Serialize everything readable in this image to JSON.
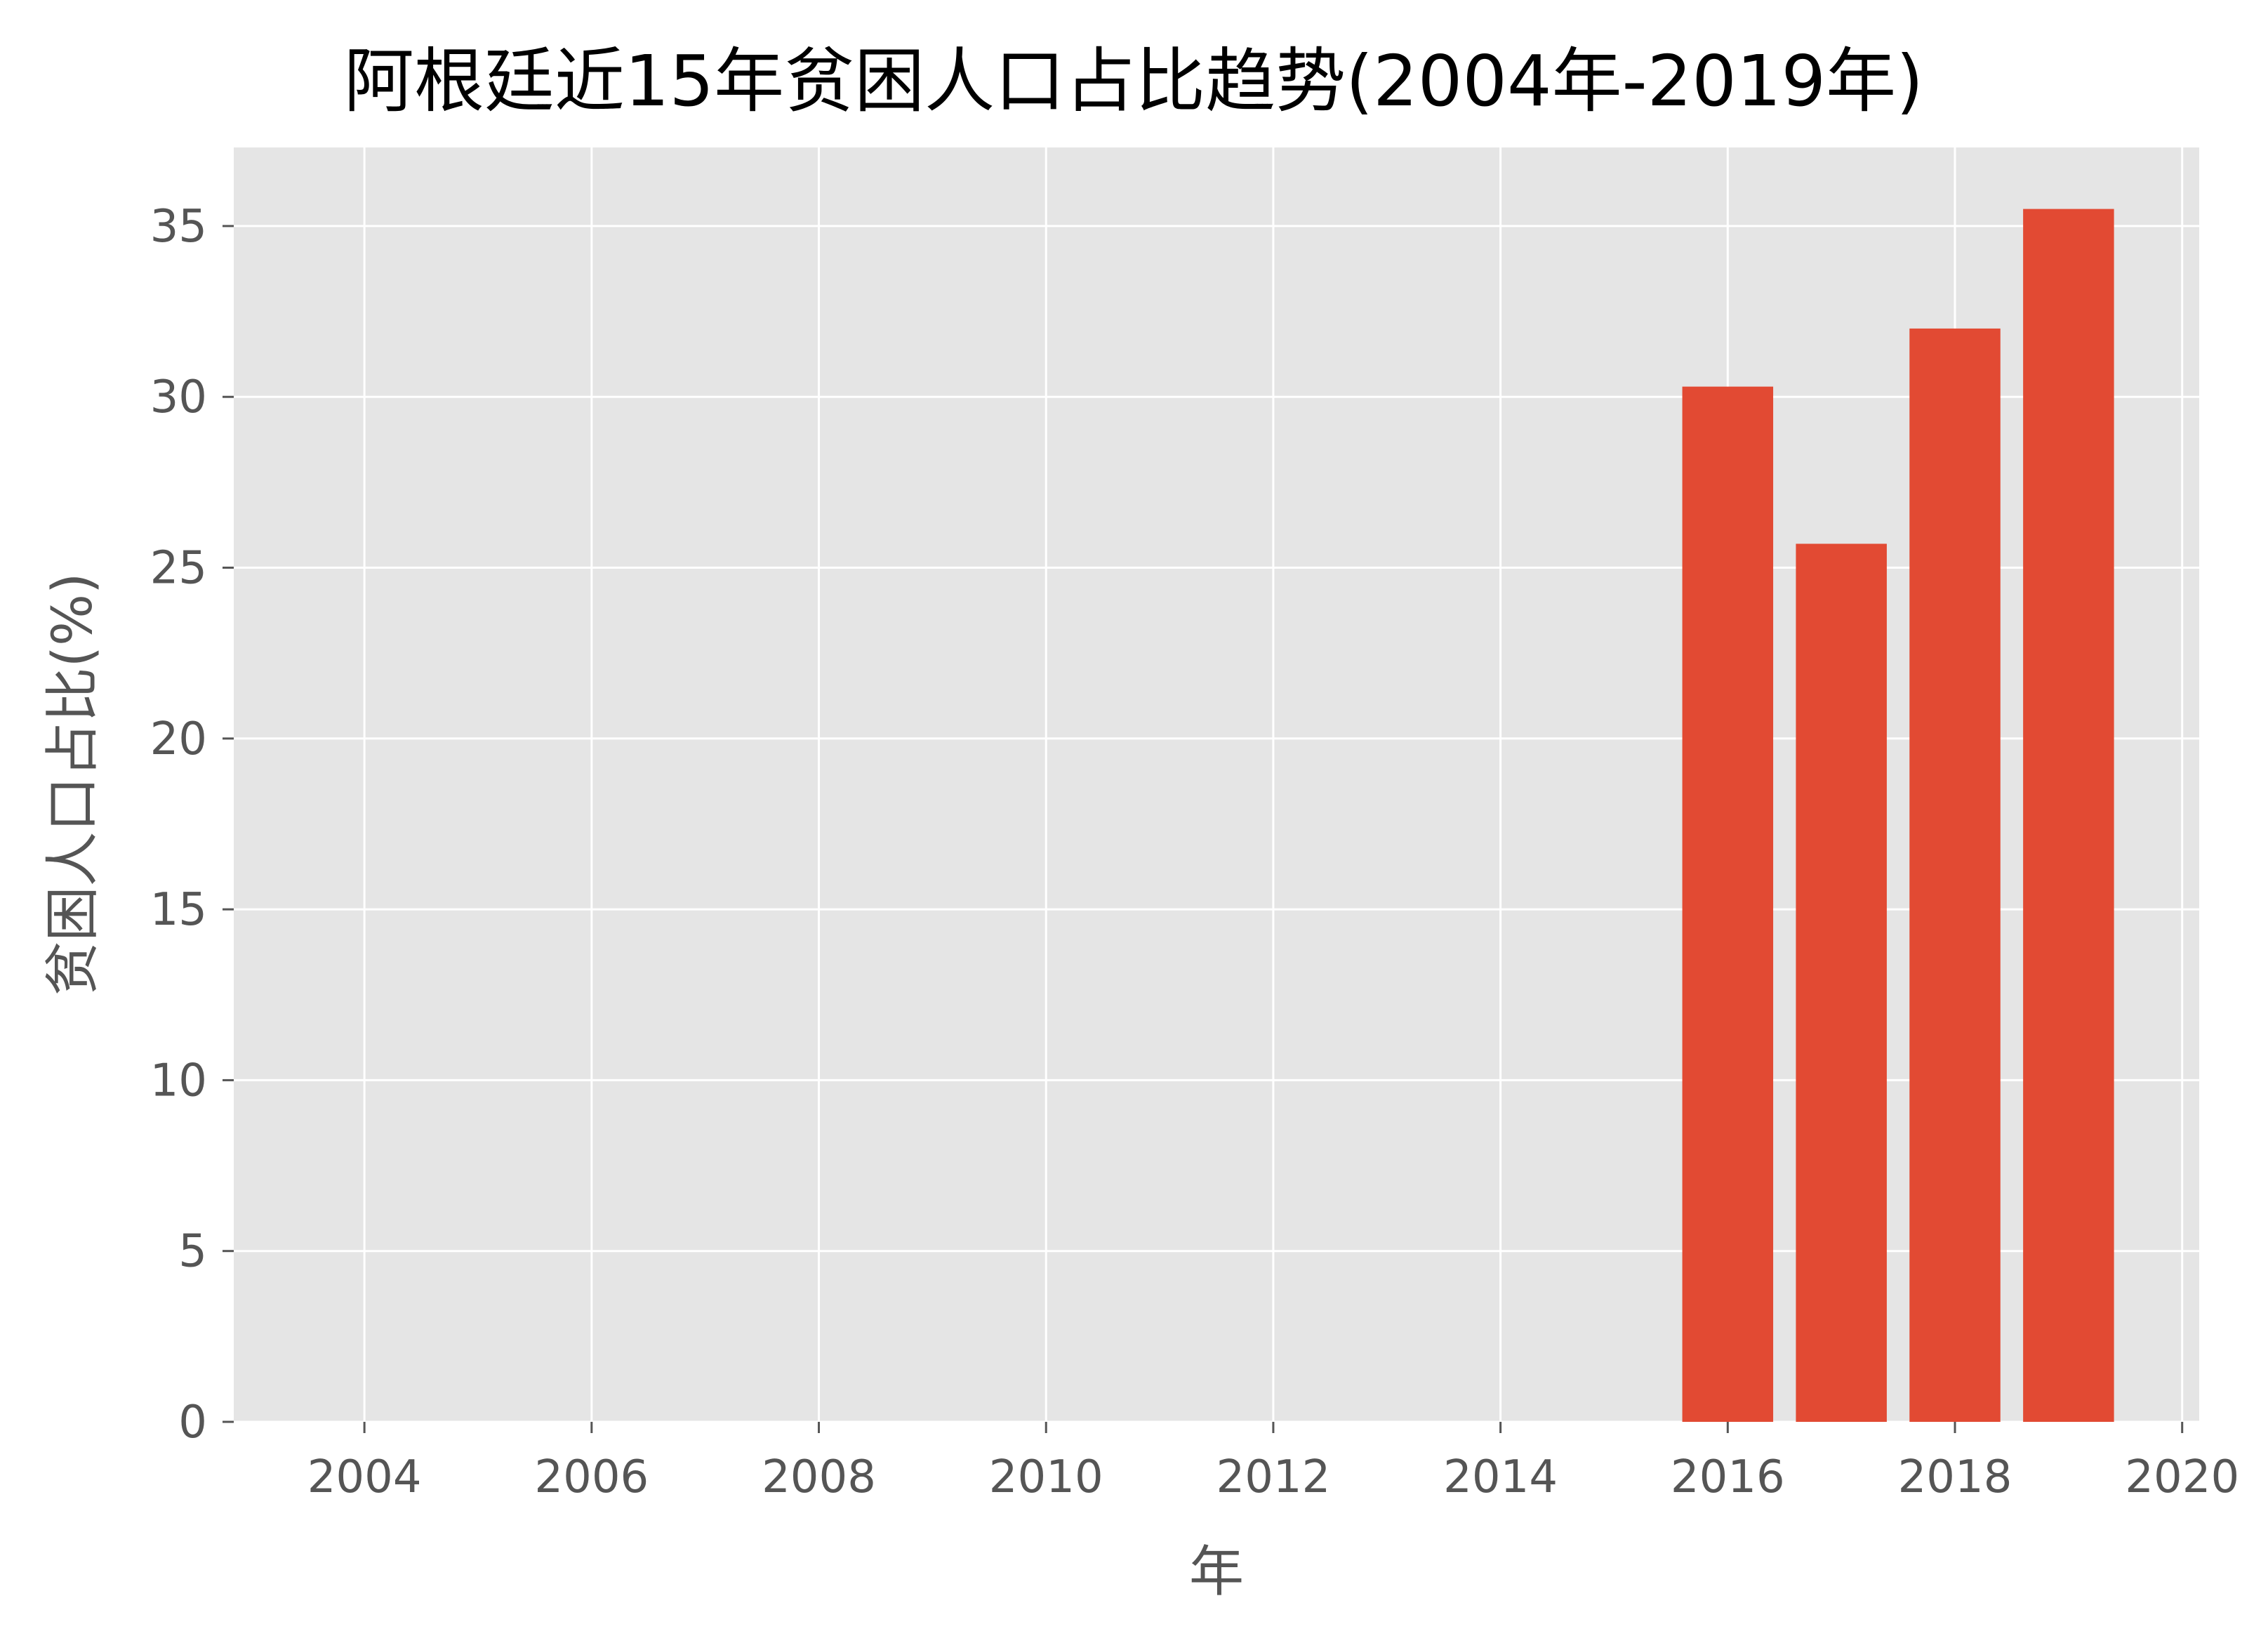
{
  "chart_data": {
    "type": "bar",
    "title": "阿根廷近15年贫困人口占比趋势(2004年-2019年)",
    "xlabel": "年",
    "ylabel": "贫困人口占比(%)",
    "x": [
      2016,
      2017,
      2018,
      2019
    ],
    "values": [
      30.3,
      25.7,
      32.0,
      35.5
    ],
    "xlim": [
      2002.85,
      2020.15
    ],
    "ylim": [
      0,
      37.3
    ],
    "xticks": [
      2004,
      2006,
      2008,
      2010,
      2012,
      2014,
      2016,
      2018,
      2020
    ],
    "yticks": [
      0,
      5,
      10,
      15,
      20,
      25,
      30,
      35
    ],
    "grid": true,
    "legend": "none"
  },
  "colors": {
    "bar": "#E24A33",
    "plot_background": "#E5E5E5",
    "grid": "#FFFFFF",
    "tick": "#555555",
    "title": "#000000"
  }
}
